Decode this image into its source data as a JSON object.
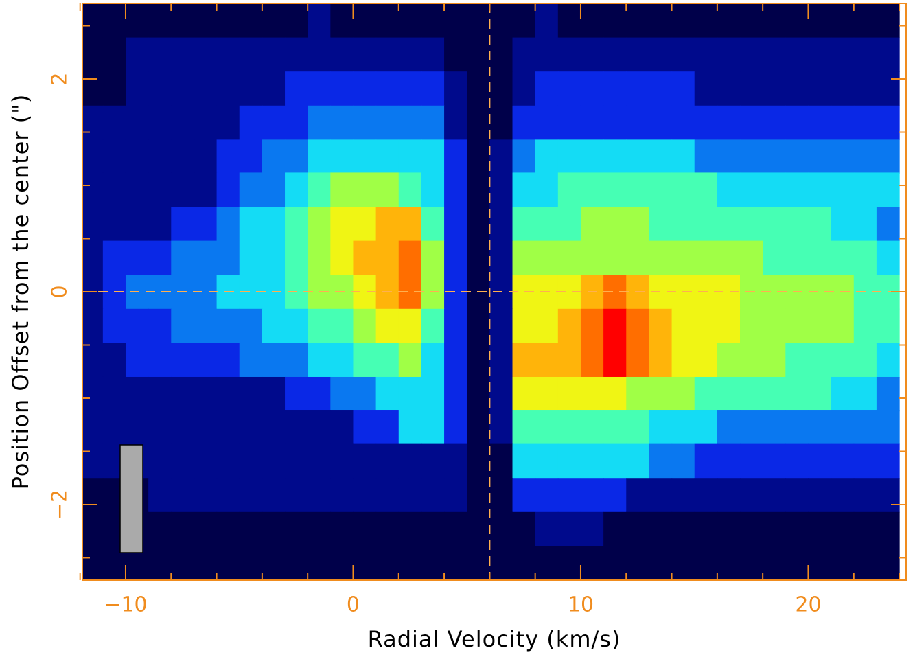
{
  "chart_data": {
    "type": "heatmap",
    "x_label": "Radial Velocity (km/s)",
    "y_label": "Position Offset from the center (\")",
    "xlim": [
      -11.9,
      24.3
    ],
    "ylim": [
      -2.71,
      2.71
    ],
    "xticks": [
      {
        "value": -10,
        "label": "−10"
      },
      0,
      10,
      20
    ],
    "yticks": [
      {
        "value": -2,
        "label": "−2"
      },
      0,
      2
    ],
    "x_minor_ticks": [
      -12,
      -8,
      -6,
      -4,
      -2,
      2,
      4,
      6,
      8,
      12,
      14,
      16,
      18,
      22,
      24
    ],
    "y_minor_ticks": [
      -2.5,
      -1.5,
      -1,
      -0.5,
      0.5,
      1,
      1.5,
      2.5
    ],
    "reference_lines": {
      "x": 6,
      "y": 0
    },
    "axis_color": "#f08c1e",
    "zlim": [
      0,
      10
    ],
    "colormap": [
      "#00004a",
      "#000a8c",
      "#0a28e6",
      "#0a78f0",
      "#14dcf5",
      "#46ffb4",
      "#a0ff46",
      "#f0f514",
      "#ffb40a",
      "#ff6e00",
      "#ff0000"
    ],
    "x": [
      -11.5,
      -10.5,
      -9.5,
      -8.5,
      -7.5,
      -6.5,
      -5.5,
      -4.5,
      -3.5,
      -2.5,
      -1.5,
      -0.5,
      0.5,
      1.5,
      2.5,
      3.5,
      4.5,
      5.5,
      6.5,
      7.5,
      8.5,
      9.5,
      10.5,
      11.5,
      12.5,
      13.5,
      14.5,
      15.5,
      16.5,
      17.5,
      18.5,
      19.5,
      20.5,
      21.5,
      22.5,
      23.5
    ],
    "y": [
      2.55,
      2.23,
      1.91,
      1.59,
      1.27,
      0.96,
      0.64,
      0.32,
      0,
      -0.32,
      -0.64,
      -0.96,
      -1.27,
      -1.59,
      -1.91,
      -2.23,
      -2.55
    ],
    "z": [
      [
        0,
        0,
        0,
        0,
        0,
        0,
        0,
        0,
        0,
        0,
        1,
        0,
        0,
        0,
        0,
        0,
        0,
        0,
        0,
        0,
        1,
        0,
        0,
        0,
        0,
        0,
        0,
        0,
        0,
        0,
        0,
        0,
        0,
        0,
        0,
        0
      ],
      [
        0,
        0,
        1,
        1,
        1,
        1,
        1,
        1,
        1,
        1,
        1,
        1,
        1,
        1,
        1,
        1,
        0,
        0,
        0,
        1,
        1,
        1,
        1,
        1,
        1,
        1,
        1,
        1,
        1,
        1,
        1,
        1,
        1,
        1,
        1,
        1
      ],
      [
        0,
        0,
        1,
        1,
        1,
        1,
        1,
        1,
        1,
        2,
        2,
        2,
        2,
        2,
        2,
        2,
        1,
        0,
        0,
        1,
        2,
        2,
        2,
        2,
        2,
        2,
        2,
        1,
        1,
        1,
        1,
        1,
        1,
        1,
        1,
        1
      ],
      [
        1,
        1,
        1,
        1,
        1,
        1,
        1,
        2,
        2,
        2,
        3,
        3,
        3,
        3,
        3,
        3,
        1,
        0,
        0,
        2,
        2,
        2,
        2,
        2,
        2,
        2,
        2,
        2,
        2,
        2,
        2,
        2,
        2,
        2,
        2,
        2
      ],
      [
        1,
        1,
        1,
        1,
        1,
        1,
        2,
        2,
        3,
        3,
        4,
        4,
        4,
        4,
        4,
        4,
        2,
        0,
        1,
        3,
        4,
        4,
        4,
        4,
        4,
        4,
        4,
        3,
        3,
        3,
        3,
        3,
        3,
        3,
        3,
        3
      ],
      [
        1,
        1,
        1,
        1,
        1,
        1,
        2,
        3,
        3,
        4,
        5,
        6,
        6,
        6,
        5,
        4,
        2,
        0,
        1,
        4,
        4,
        5,
        5,
        5,
        5,
        5,
        5,
        5,
        4,
        4,
        4,
        4,
        4,
        4,
        4,
        4
      ],
      [
        1,
        1,
        1,
        1,
        2,
        2,
        3,
        4,
        4,
        5,
        6,
        7,
        7,
        8,
        8,
        5,
        2,
        0,
        1,
        5,
        5,
        5,
        6,
        6,
        6,
        5,
        5,
        5,
        5,
        5,
        5,
        5,
        5,
        4,
        4,
        3
      ],
      [
        1,
        2,
        2,
        2,
        3,
        3,
        3,
        4,
        4,
        5,
        6,
        7,
        8,
        8,
        9,
        6,
        2,
        0,
        1,
        6,
        6,
        6,
        6,
        6,
        6,
        6,
        6,
        6,
        6,
        6,
        5,
        5,
        5,
        5,
        5,
        4
      ],
      [
        1,
        2,
        3,
        3,
        3,
        3,
        4,
        4,
        4,
        5,
        6,
        6,
        7,
        8,
        9,
        6,
        2,
        0,
        1,
        7,
        7,
        7,
        8,
        9,
        8,
        7,
        7,
        7,
        7,
        6,
        6,
        6,
        6,
        6,
        5,
        5
      ],
      [
        1,
        2,
        2,
        2,
        3,
        3,
        3,
        3,
        4,
        4,
        5,
        5,
        6,
        7,
        7,
        5,
        2,
        0,
        1,
        7,
        7,
        8,
        9,
        10,
        9,
        8,
        7,
        7,
        7,
        6,
        6,
        6,
        6,
        6,
        5,
        5
      ],
      [
        1,
        1,
        2,
        2,
        2,
        2,
        2,
        3,
        3,
        3,
        4,
        4,
        5,
        5,
        6,
        4,
        2,
        0,
        1,
        8,
        8,
        8,
        9,
        10,
        9,
        8,
        7,
        7,
        6,
        6,
        6,
        5,
        5,
        5,
        5,
        4
      ],
      [
        1,
        1,
        1,
        1,
        1,
        1,
        1,
        1,
        1,
        2,
        2,
        3,
        3,
        4,
        4,
        4,
        2,
        0,
        1,
        7,
        7,
        7,
        7,
        7,
        6,
        6,
        6,
        5,
        5,
        5,
        5,
        5,
        5,
        4,
        4,
        3
      ],
      [
        1,
        1,
        1,
        1,
        1,
        1,
        1,
        1,
        1,
        1,
        1,
        1,
        2,
        2,
        4,
        4,
        2,
        0,
        1,
        5,
        5,
        5,
        5,
        5,
        5,
        4,
        4,
        4,
        3,
        3,
        3,
        3,
        3,
        3,
        3,
        3
      ],
      [
        1,
        1,
        1,
        1,
        1,
        1,
        1,
        1,
        1,
        1,
        1,
        1,
        1,
        1,
        1,
        1,
        1,
        0,
        0,
        4,
        4,
        4,
        4,
        4,
        4,
        3,
        3,
        2,
        2,
        2,
        2,
        2,
        2,
        2,
        2,
        2
      ],
      [
        0,
        0,
        0,
        1,
        1,
        1,
        1,
        1,
        1,
        1,
        1,
        1,
        1,
        1,
        1,
        1,
        1,
        0,
        0,
        2,
        2,
        2,
        2,
        2,
        1,
        1,
        1,
        1,
        1,
        1,
        1,
        1,
        1,
        1,
        1,
        1
      ],
      [
        0,
        0,
        0,
        0,
        0,
        0,
        0,
        0,
        0,
        0,
        0,
        0,
        0,
        0,
        0,
        0,
        0,
        0,
        0,
        0,
        1,
        1,
        1,
        0,
        0,
        0,
        0,
        0,
        0,
        0,
        0,
        0,
        0,
        0,
        0,
        0
      ],
      [
        0,
        0,
        0,
        0,
        0,
        0,
        0,
        0,
        0,
        0,
        0,
        0,
        0,
        0,
        0,
        0,
        0,
        0,
        0,
        0,
        0,
        0,
        0,
        0,
        0,
        0,
        0,
        0,
        0,
        0,
        0,
        0,
        0,
        0,
        0,
        0
      ]
    ]
  }
}
